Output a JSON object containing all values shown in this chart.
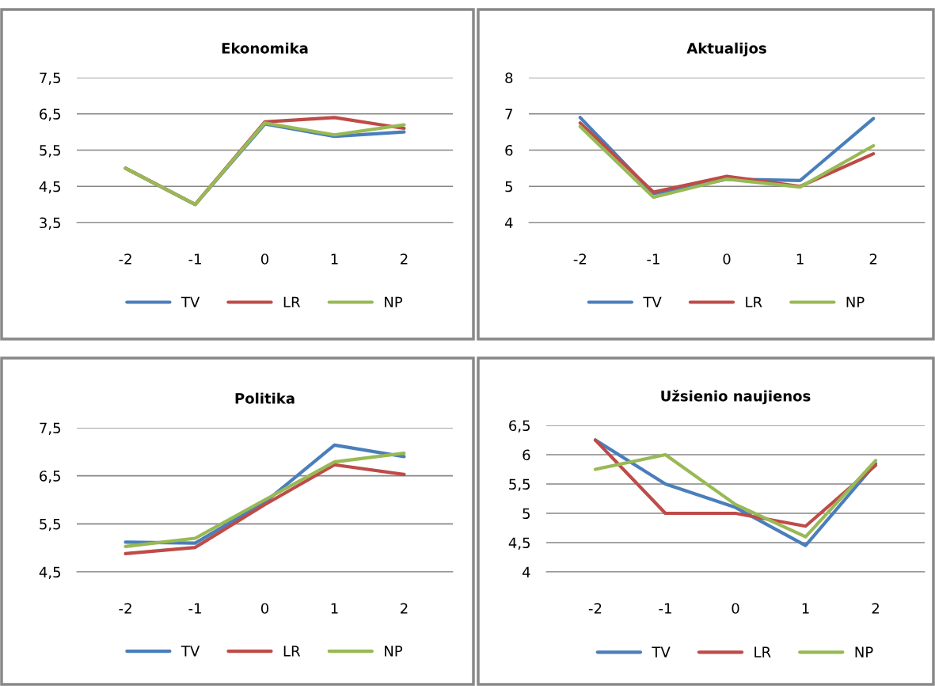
{
  "chart_data": [
    {
      "type": "line",
      "title": "Ekonomika",
      "categories": [
        "-2",
        "-1",
        "0",
        "1",
        "2"
      ],
      "ylim": [
        3.5,
        7.5
      ],
      "yticks": [
        {
          "value": 3.5,
          "label": "3,5"
        },
        {
          "value": 4.5,
          "label": "4,5"
        },
        {
          "value": 5.5,
          "label": "5,5"
        },
        {
          "value": 6.5,
          "label": "6,5"
        },
        {
          "value": 7.5,
          "label": "7,5"
        }
      ],
      "grid": "y",
      "legend": "bottom",
      "marker": "none",
      "line_style": "solid",
      "series": [
        {
          "name": "TV",
          "color": "#4a7ebb",
          "values": [
            5.0,
            4.0,
            6.22,
            5.88,
            6.0
          ]
        },
        {
          "name": "LR",
          "color": "#be4b48",
          "values": [
            5.0,
            4.0,
            6.28,
            6.4,
            6.1
          ]
        },
        {
          "name": "NP",
          "color": "#98b954",
          "values": [
            5.0,
            4.0,
            6.25,
            5.92,
            6.2
          ]
        }
      ]
    },
    {
      "type": "line",
      "title": "Aktualijos",
      "categories": [
        "-2",
        "-1",
        "0",
        "1",
        "2"
      ],
      "ylim": [
        4,
        8
      ],
      "yticks": [
        4,
        5,
        6,
        7,
        8
      ],
      "grid": "y",
      "legend": "bottom",
      "marker": "none",
      "line_style": "solid",
      "series": [
        {
          "name": "TV",
          "color": "#4a7ebb",
          "values": [
            6.9,
            4.8,
            5.2,
            5.16,
            6.87
          ]
        },
        {
          "name": "LR",
          "color": "#be4b48",
          "values": [
            6.75,
            4.84,
            5.28,
            5.0,
            5.9
          ]
        },
        {
          "name": "NP",
          "color": "#98b954",
          "values": [
            6.65,
            4.7,
            5.2,
            4.98,
            6.12
          ]
        }
      ]
    },
    {
      "type": "line",
      "title": "Politika",
      "categories": [
        "-2",
        "-1",
        "0",
        "1",
        "2"
      ],
      "ylim": [
        4.5,
        7.5
      ],
      "yticks": [
        {
          "value": 4.5,
          "label": "4,5"
        },
        {
          "value": 5.5,
          "label": "5,5"
        },
        {
          "value": 6.5,
          "label": "6,5"
        },
        {
          "value": 7.5,
          "label": "7,5"
        }
      ],
      "grid": "y",
      "legend": "bottom",
      "marker": "none",
      "line_style": "solid",
      "series": [
        {
          "name": "TV",
          "color": "#4a7ebb",
          "values": [
            5.12,
            5.1,
            5.95,
            7.14,
            6.9
          ]
        },
        {
          "name": "LR",
          "color": "#be4b48",
          "values": [
            4.88,
            5.01,
            5.9,
            6.73,
            6.53
          ]
        },
        {
          "name": "NP",
          "color": "#98b954",
          "values": [
            5.03,
            5.2,
            6.0,
            6.79,
            6.97
          ]
        }
      ]
    },
    {
      "type": "line",
      "title": "Užsienio naujienos",
      "categories": [
        "-2",
        "-1",
        "0",
        "1",
        "2"
      ],
      "ylim": [
        4,
        6.5
      ],
      "yticks": [
        4,
        {
          "value": 4.5,
          "label": "4,5"
        },
        5,
        {
          "value": 5.5,
          "label": "5,5"
        },
        6,
        {
          "value": 6.5,
          "label": "6,5"
        }
      ],
      "grid": "y",
      "legend": "bottom",
      "marker": "none",
      "line_style": "solid",
      "series": [
        {
          "name": "TV",
          "color": "#4a7ebb",
          "values": [
            6.25,
            5.5,
            5.1,
            4.45,
            5.85
          ]
        },
        {
          "name": "LR",
          "color": "#be4b48",
          "values": [
            6.25,
            5.0,
            5.0,
            4.78,
            5.82
          ]
        },
        {
          "name": "NP",
          "color": "#98b954",
          "values": [
            5.75,
            6.0,
            5.15,
            4.6,
            5.9
          ]
        }
      ]
    }
  ]
}
